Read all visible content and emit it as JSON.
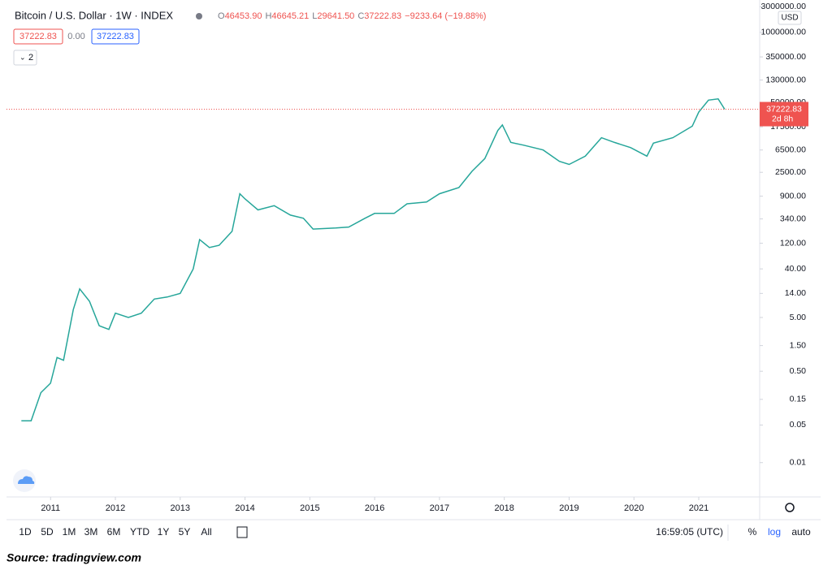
{
  "header": {
    "title": "Bitcoin / U.S. Dollar · 1W · INDEX",
    "ohlc": [
      {
        "label": "O",
        "value": "46453.90"
      },
      {
        "label": "H",
        "value": "46645.21"
      },
      {
        "label": "L",
        "value": "29641.50"
      },
      {
        "label": "C",
        "value": "37222.83"
      }
    ],
    "change": "−9233.64 (−19.88%)",
    "inputs": [
      "37222.83",
      "0.00",
      "37222.83"
    ],
    "indicators_count": "2",
    "currency": "USD"
  },
  "chart_data": {
    "type": "line",
    "log_scale": true,
    "color": "#26a69a",
    "price_line_color": "#ef5350",
    "x": [
      2010.55,
      2010.7,
      2010.85,
      2011.0,
      2011.1,
      2011.2,
      2011.35,
      2011.45,
      2011.6,
      2011.75,
      2011.9,
      2012.0,
      2012.2,
      2012.4,
      2012.6,
      2012.8,
      2013.0,
      2013.2,
      2013.3,
      2013.45,
      2013.6,
      2013.8,
      2013.92,
      2014.0,
      2014.2,
      2014.45,
      2014.7,
      2014.9,
      2015.05,
      2015.4,
      2015.6,
      2015.85,
      2016.0,
      2016.3,
      2016.5,
      2016.8,
      2017.0,
      2017.3,
      2017.5,
      2017.7,
      2017.9,
      2017.97,
      2018.1,
      2018.3,
      2018.6,
      2018.85,
      2019.0,
      2019.25,
      2019.5,
      2019.7,
      2019.95,
      2020.2,
      2020.3,
      2020.6,
      2020.9,
      2021.0,
      2021.15,
      2021.3,
      2021.4
    ],
    "values": [
      0.06,
      0.06,
      0.2,
      0.3,
      0.9,
      0.8,
      7,
      17,
      10,
      3.5,
      3,
      6,
      5,
      6,
      11,
      12,
      14,
      40,
      140,
      100,
      110,
      200,
      1000,
      800,
      500,
      600,
      400,
      350,
      220,
      230,
      240,
      350,
      430,
      430,
      650,
      700,
      1000,
      1300,
      2600,
      4500,
      15000,
      19000,
      9000,
      8000,
      6500,
      4000,
      3500,
      5000,
      11000,
      9000,
      7200,
      5000,
      8700,
      11000,
      18000,
      33000,
      55000,
      58000,
      37222.83
    ],
    "last_price": "37222.83",
    "countdown": "2d 8h",
    "xlim": [
      2010.32,
      2021.94
    ],
    "xticks": [
      2011,
      2012,
      2013,
      2014,
      2015,
      2016,
      2017,
      2018,
      2019,
      2020,
      2021
    ],
    "ylim": [
      0.0023,
      4000000
    ],
    "yticks": [
      {
        "value": 0.01,
        "label": "0.01"
      },
      {
        "value": 0.05,
        "label": "0.05"
      },
      {
        "value": 0.15,
        "label": "0.15"
      },
      {
        "value": 0.5,
        "label": "0.50"
      },
      {
        "value": 1.5,
        "label": "1.50"
      },
      {
        "value": 5,
        "label": "5.00"
      },
      {
        "value": 14,
        "label": "14.00"
      },
      {
        "value": 40,
        "label": "40.00"
      },
      {
        "value": 120,
        "label": "120.00"
      },
      {
        "value": 340,
        "label": "340.00"
      },
      {
        "value": 900,
        "label": "900.00"
      },
      {
        "value": 2500,
        "label": "2500.00"
      },
      {
        "value": 6500,
        "label": "6500.00"
      },
      {
        "value": 17500,
        "label": "17500.00"
      },
      {
        "value": 50000,
        "label": "50000.00"
      },
      {
        "value": 130000,
        "label": "130000.00"
      },
      {
        "value": 350000,
        "label": "350000.00"
      },
      {
        "value": 1000000,
        "label": "1000000.00"
      },
      {
        "value": 3000000,
        "label": "3000000.00"
      }
    ]
  },
  "toolbar": {
    "ranges": [
      "1D",
      "5D",
      "1M",
      "3M",
      "6M",
      "YTD",
      "1Y",
      "5Y",
      "All"
    ],
    "time": "16:59:05 (UTC)",
    "percent": "%",
    "log": "log",
    "auto": "auto"
  },
  "source": "Source: tradingview.com"
}
